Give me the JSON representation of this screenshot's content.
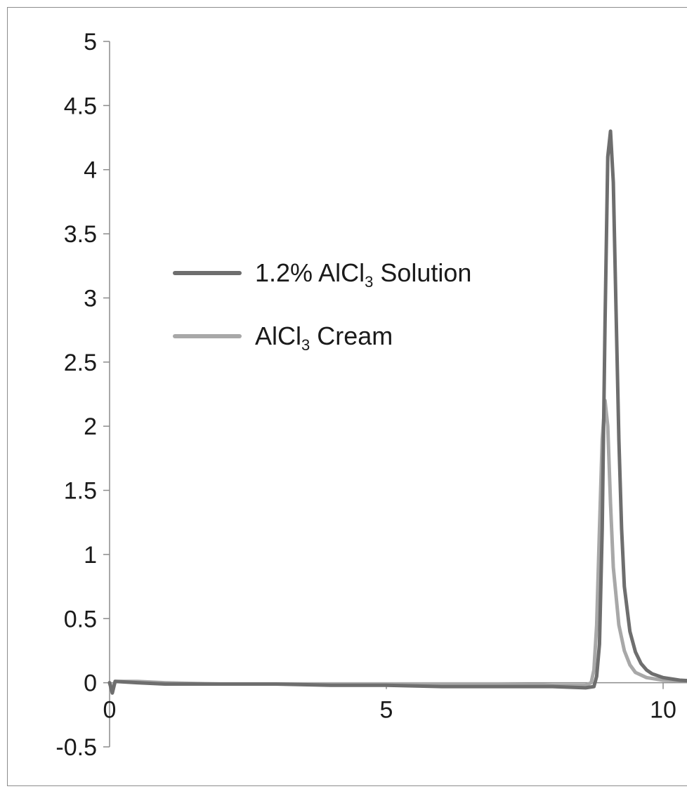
{
  "chart_data": {
    "type": "line",
    "xlim": [
      0,
      10.7
    ],
    "ylim": [
      -0.5,
      5
    ],
    "x_ticks": [
      "0",
      "5",
      "10"
    ],
    "y_ticks": [
      "5",
      "4.5",
      "4",
      "3.5",
      "3",
      "2.5",
      "2",
      "1.5",
      "1",
      "0.5",
      "0",
      "-0.5"
    ],
    "grid": false,
    "legend_position": "upper-left",
    "series": [
      {
        "name": "1.2% AlCl3 Solution",
        "legend_parts": [
          "1.2% AlCl",
          "3",
          " Solution"
        ],
        "color": "#6e6e6e",
        "points": [
          [
            0,
            0
          ],
          [
            0.05,
            -0.08
          ],
          [
            0.1,
            0.01
          ],
          [
            0.5,
            0.0
          ],
          [
            1,
            -0.01
          ],
          [
            2,
            -0.01
          ],
          [
            3,
            -0.01
          ],
          [
            4,
            -0.02
          ],
          [
            5,
            -0.02
          ],
          [
            6,
            -0.03
          ],
          [
            7,
            -0.03
          ],
          [
            8,
            -0.03
          ],
          [
            8.6,
            -0.04
          ],
          [
            8.75,
            -0.03
          ],
          [
            8.8,
            0.05
          ],
          [
            8.85,
            0.3
          ],
          [
            8.9,
            1.2
          ],
          [
            8.95,
            2.8
          ],
          [
            9.0,
            4.1
          ],
          [
            9.05,
            4.3
          ],
          [
            9.1,
            3.9
          ],
          [
            9.15,
            2.9
          ],
          [
            9.2,
            1.9
          ],
          [
            9.25,
            1.2
          ],
          [
            9.3,
            0.75
          ],
          [
            9.4,
            0.4
          ],
          [
            9.5,
            0.24
          ],
          [
            9.6,
            0.15
          ],
          [
            9.7,
            0.1
          ],
          [
            9.8,
            0.07
          ],
          [
            10.0,
            0.04
          ],
          [
            10.3,
            0.02
          ],
          [
            10.7,
            0.01
          ]
        ]
      },
      {
        "name": "AlCl3 Cream",
        "legend_parts": [
          "AlCl",
          "3",
          " Cream"
        ],
        "color": "#a8a8a8",
        "points": [
          [
            0,
            0
          ],
          [
            0.05,
            -0.05
          ],
          [
            0.1,
            0.01
          ],
          [
            0.5,
            0.01
          ],
          [
            1,
            0.0
          ],
          [
            2,
            -0.01
          ],
          [
            3,
            -0.01
          ],
          [
            4,
            -0.01
          ],
          [
            5,
            -0.01
          ],
          [
            6,
            -0.01
          ],
          [
            7,
            -0.01
          ],
          [
            8,
            -0.02
          ],
          [
            8.6,
            -0.02
          ],
          [
            8.7,
            0.0
          ],
          [
            8.75,
            0.1
          ],
          [
            8.8,
            0.45
          ],
          [
            8.85,
            1.2
          ],
          [
            8.9,
            1.9
          ],
          [
            8.95,
            2.2
          ],
          [
            9.0,
            2.0
          ],
          [
            9.05,
            1.4
          ],
          [
            9.1,
            0.9
          ],
          [
            9.2,
            0.45
          ],
          [
            9.3,
            0.25
          ],
          [
            9.4,
            0.14
          ],
          [
            9.5,
            0.08
          ],
          [
            9.7,
            0.04
          ],
          [
            10.0,
            0.02
          ],
          [
            10.7,
            0.01
          ]
        ]
      }
    ]
  }
}
